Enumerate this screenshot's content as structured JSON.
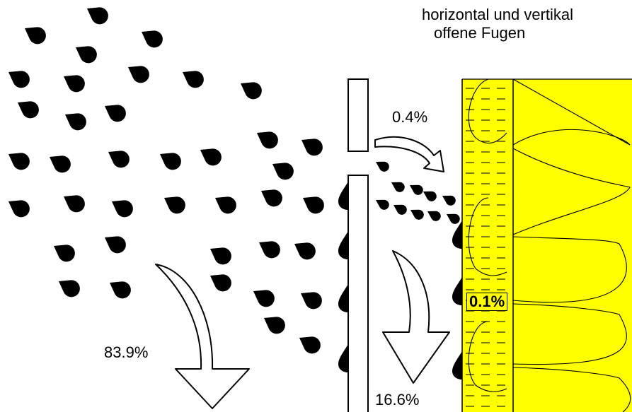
{
  "title": {
    "line1": "horizontal und vertikal",
    "line2": "offene Fugen"
  },
  "percentages": {
    "runoff_front": "83.9%",
    "runoff_back": "16.6%",
    "through_joint": "0.4%",
    "into_insulation": "0.1%"
  },
  "colors": {
    "insulation": "#ffff00",
    "drops": "#000000",
    "arrow_fill": "#ffffff"
  },
  "icons": {
    "drop": "raindrop-icon",
    "arrow": "curved-arrow-icon"
  }
}
